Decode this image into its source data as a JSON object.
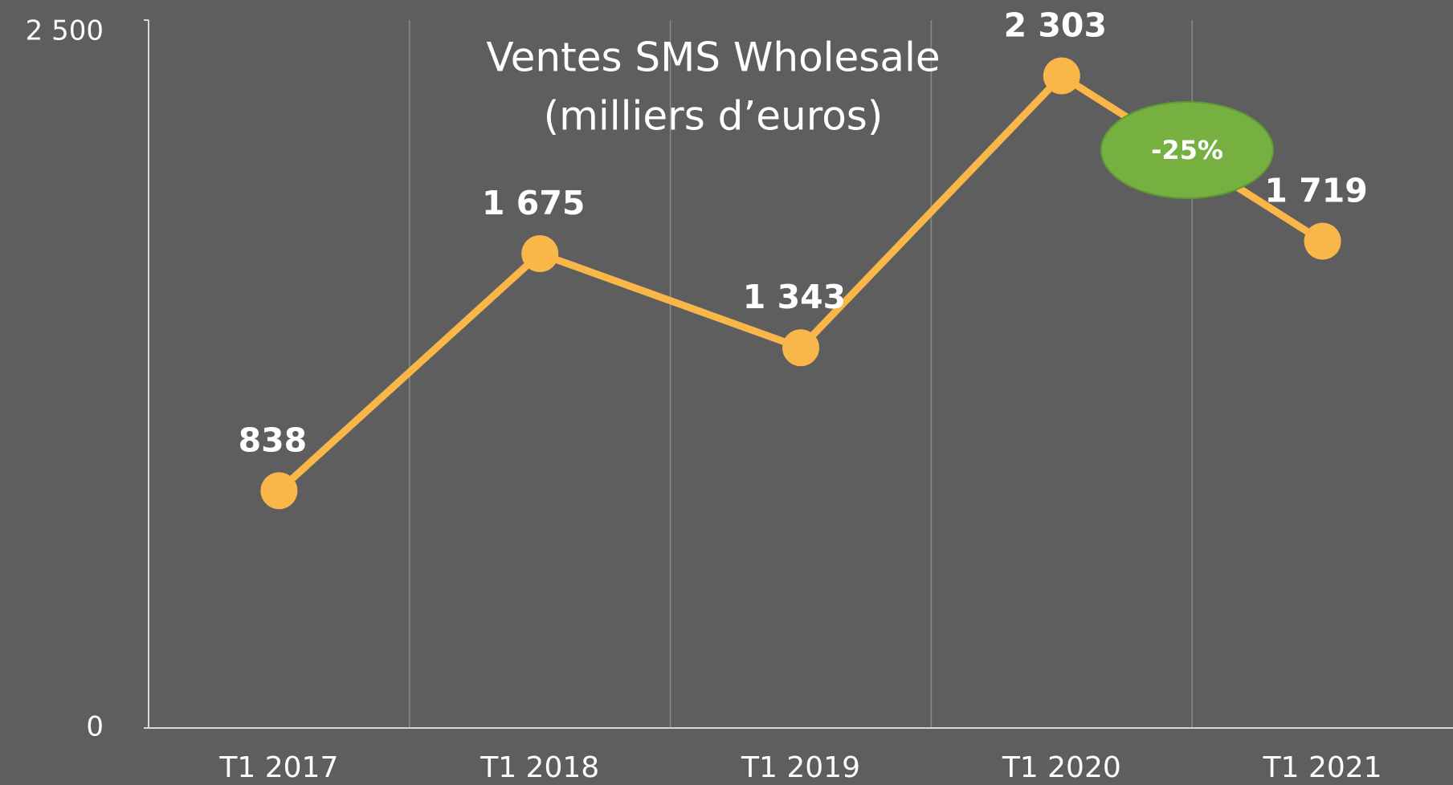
{
  "chart_data": {
    "type": "line",
    "title": "Ventes SMS Wholesale",
    "subtitle": "(milliers d’euros)",
    "categories": [
      "T1 2017",
      "T1 2018",
      "T1 2019",
      "T1 2020",
      "T1 2021"
    ],
    "series": [
      {
        "color": "#f9b649",
        "values": [
          838,
          1675,
          1343,
          2303,
          1719
        ],
        "value_labels": [
          "838",
          "1 675",
          "1 343",
          "2 303",
          "1 719"
        ]
      }
    ],
    "ylim": [
      0,
      2500
    ],
    "yticks": [
      0,
      {
        "value": 2500,
        "label": "2 500"
      }
    ],
    "xgrid": true,
    "annotations": [
      {
        "text": "-25%",
        "color": "#76b041"
      }
    ]
  }
}
